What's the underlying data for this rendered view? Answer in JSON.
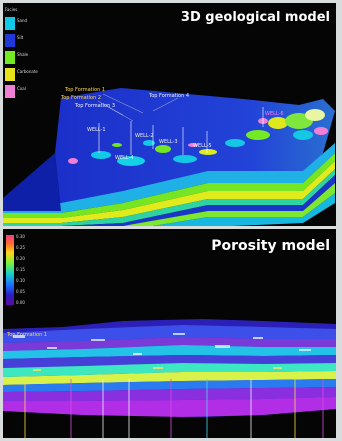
{
  "panels": {
    "geo": {
      "title": "3D geological model",
      "legend": {
        "header": "Facies",
        "items": [
          {
            "label": "Sand",
            "color": "#12c8ea"
          },
          {
            "label": "Silt",
            "color": "#1f39d8"
          },
          {
            "label": "Shale",
            "color": "#73ea22"
          },
          {
            "label": "Carbonate",
            "color": "#e9e11a"
          },
          {
            "label": "Coal",
            "color": "#f07fd6"
          }
        ]
      },
      "horizon_labels": [
        "Top Formation 1",
        "Top Formation 2",
        "Top Formation 3",
        "Top Formation 4"
      ],
      "well_labels": [
        "WELL-1",
        "WELL-2",
        "WELL-3",
        "WELL-4",
        "WELL-5",
        "WELL-6"
      ]
    },
    "por": {
      "title": "Porosity model",
      "colorbar_ticks": [
        "0.30",
        "0.25",
        "0.20",
        "0.15",
        "0.10",
        "0.05",
        "0.00"
      ],
      "horizon_labels": [
        "Top Formation 1"
      ]
    }
  },
  "colors": {
    "background": "#050505",
    "frame": "#d9dcdd",
    "title": "#ffffff"
  }
}
